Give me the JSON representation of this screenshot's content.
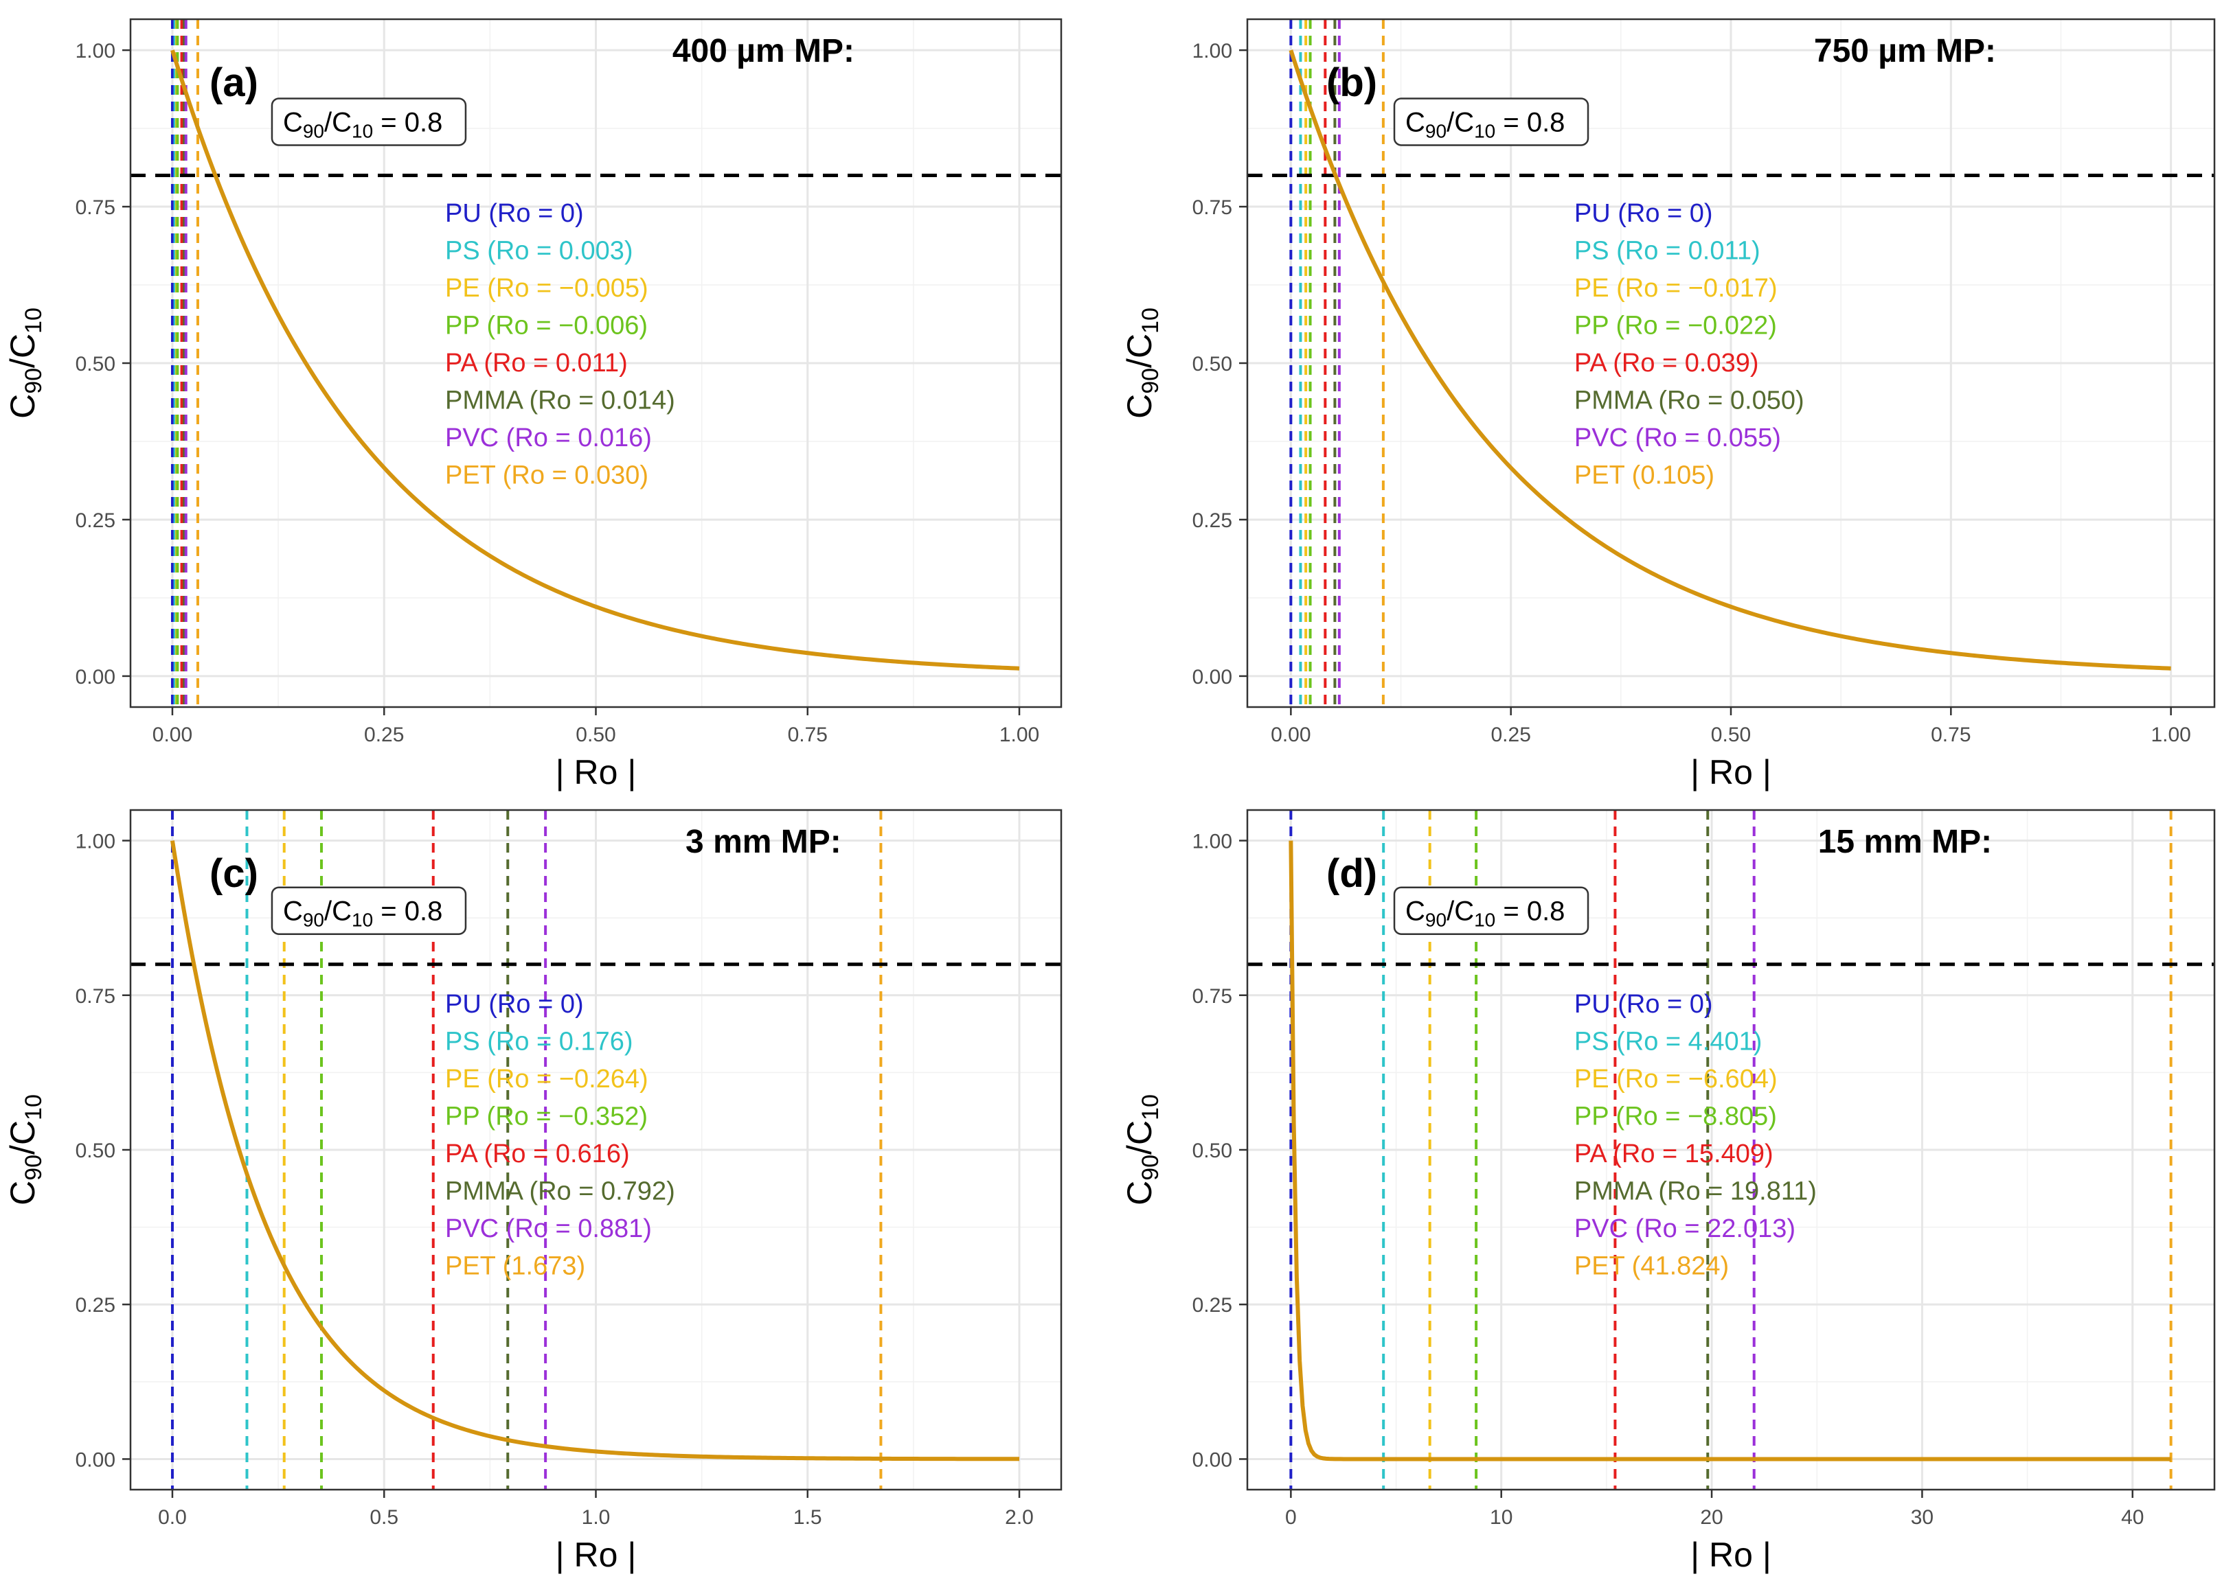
{
  "chart_data": [
    {
      "type": "line",
      "panel_label": "(a)",
      "title": "400 µm MP:",
      "xlabel": "| Ro |",
      "ylabel_main": "C",
      "ylabel_num_sub": "90",
      "ylabel_den_sub": "10",
      "xlim": [
        0,
        1
      ],
      "ylim": [
        0,
        1
      ],
      "xticks": [
        0,
        0.25,
        0.5,
        0.75,
        1
      ],
      "xtick_labels": [
        "0.00",
        "0.25",
        "0.50",
        "0.75",
        "1.00"
      ],
      "yticks": [
        0,
        0.25,
        0.5,
        0.75,
        1
      ],
      "ytick_labels": [
        "0.00",
        "0.25",
        "0.50",
        "0.75",
        "1.00"
      ],
      "grid": true,
      "decay_rate": 4.4,
      "curve_color": "#d4940f",
      "hline": {
        "y": 0.8,
        "label_main": "C",
        "label_num_sub": "90",
        "label_den_sub": "10",
        "label_value": " = 0.8"
      },
      "vlines": [
        {
          "name": "PU",
          "value": 0,
          "label": "PU (Ro = 0)",
          "color": "#1f1fc8"
        },
        {
          "name": "PS",
          "value": 0.003,
          "label": "PS (Ro = 0.003)",
          "color": "#2ec4c9"
        },
        {
          "name": "PE",
          "value": 0.005,
          "label": "PE (Ro = −0.005)",
          "color": "#f2c21b"
        },
        {
          "name": "PP",
          "value": 0.006,
          "label": "PP (Ro = −0.006)",
          "color": "#6cc41e"
        },
        {
          "name": "PA",
          "value": 0.011,
          "label": "PA (Ro = 0.011)",
          "color": "#e61e1e"
        },
        {
          "name": "PMMA",
          "value": 0.014,
          "label": "PMMA (Ro = 0.014)",
          "color": "#556b2f"
        },
        {
          "name": "PVC",
          "value": 0.016,
          "label": "PVC (Ro = 0.016)",
          "color": "#9b30d9"
        },
        {
          "name": "PET",
          "value": 0.03,
          "label": "PET (Ro = 0.030)",
          "color": "#f0a81e"
        }
      ]
    },
    {
      "type": "line",
      "panel_label": "(b)",
      "title": "750 µm MP:",
      "xlabel": "| Ro |",
      "ylabel_main": "C",
      "ylabel_num_sub": "90",
      "ylabel_den_sub": "10",
      "xlim": [
        0,
        1
      ],
      "ylim": [
        0,
        1
      ],
      "xticks": [
        0,
        0.25,
        0.5,
        0.75,
        1
      ],
      "xtick_labels": [
        "0.00",
        "0.25",
        "0.50",
        "0.75",
        "1.00"
      ],
      "yticks": [
        0,
        0.25,
        0.5,
        0.75,
        1
      ],
      "ytick_labels": [
        "0.00",
        "0.25",
        "0.50",
        "0.75",
        "1.00"
      ],
      "grid": true,
      "decay_rate": 4.4,
      "curve_color": "#d4940f",
      "hline": {
        "y": 0.8,
        "label_main": "C",
        "label_num_sub": "90",
        "label_den_sub": "10",
        "label_value": " = 0.8"
      },
      "vlines": [
        {
          "name": "PU",
          "value": 0,
          "label": "PU (Ro = 0)",
          "color": "#1f1fc8"
        },
        {
          "name": "PS",
          "value": 0.011,
          "label": "PS (Ro = 0.011)",
          "color": "#2ec4c9"
        },
        {
          "name": "PE",
          "value": 0.017,
          "label": "PE (Ro = −0.017)",
          "color": "#f2c21b"
        },
        {
          "name": "PP",
          "value": 0.022,
          "label": "PP (Ro = −0.022)",
          "color": "#6cc41e"
        },
        {
          "name": "PA",
          "value": 0.039,
          "label": "PA (Ro = 0.039)",
          "color": "#e61e1e"
        },
        {
          "name": "PMMA",
          "value": 0.05,
          "label": "PMMA (Ro = 0.050)",
          "color": "#556b2f"
        },
        {
          "name": "PVC",
          "value": 0.055,
          "label": "PVC (Ro = 0.055)",
          "color": "#9b30d9"
        },
        {
          "name": "PET",
          "value": 0.105,
          "label": "PET (0.105)",
          "color": "#f0a81e"
        }
      ]
    },
    {
      "type": "line",
      "panel_label": "(c)",
      "title": "3 mm MP:",
      "xlabel": "| Ro |",
      "ylabel_main": "C",
      "ylabel_num_sub": "90",
      "ylabel_den_sub": "10",
      "xlim": [
        0,
        2
      ],
      "ylim": [
        0,
        1
      ],
      "xticks": [
        0,
        0.5,
        1,
        1.5,
        2
      ],
      "xtick_labels": [
        "0.0",
        "0.5",
        "1.0",
        "1.5",
        "2.0"
      ],
      "yticks": [
        0,
        0.25,
        0.5,
        0.75,
        1
      ],
      "ytick_labels": [
        "0.00",
        "0.25",
        "0.50",
        "0.75",
        "1.00"
      ],
      "grid": true,
      "decay_rate": 4.4,
      "curve_color": "#d4940f",
      "hline": {
        "y": 0.8,
        "label_main": "C",
        "label_num_sub": "90",
        "label_den_sub": "10",
        "label_value": " = 0.8"
      },
      "vlines": [
        {
          "name": "PU",
          "value": 0,
          "label": "PU (Ro = 0)",
          "color": "#1f1fc8"
        },
        {
          "name": "PS",
          "value": 0.176,
          "label": "PS (Ro = 0.176)",
          "color": "#2ec4c9"
        },
        {
          "name": "PE",
          "value": 0.264,
          "label": "PE (Ro = −0.264)",
          "color": "#f2c21b"
        },
        {
          "name": "PP",
          "value": 0.352,
          "label": "PP (Ro = −0.352)",
          "color": "#6cc41e"
        },
        {
          "name": "PA",
          "value": 0.616,
          "label": "PA (Ro = 0.616)",
          "color": "#e61e1e"
        },
        {
          "name": "PMMA",
          "value": 0.792,
          "label": "PMMA (Ro = 0.792)",
          "color": "#556b2f"
        },
        {
          "name": "PVC",
          "value": 0.881,
          "label": "PVC (Ro = 0.881)",
          "color": "#9b30d9"
        },
        {
          "name": "PET",
          "value": 1.673,
          "label": "PET (1.673)",
          "color": "#f0a81e"
        }
      ]
    },
    {
      "type": "line",
      "panel_label": "(d)",
      "title": "15 mm MP:",
      "xlabel": "| Ro |",
      "ylabel_main": "C",
      "ylabel_num_sub": "90",
      "ylabel_den_sub": "10",
      "xlim": [
        0,
        41.824
      ],
      "ylim": [
        0,
        1
      ],
      "xticks": [
        0,
        10,
        20,
        30,
        40
      ],
      "xtick_labels": [
        "0",
        "10",
        "20",
        "30",
        "40"
      ],
      "yticks": [
        0,
        0.25,
        0.5,
        0.75,
        1
      ],
      "ytick_labels": [
        "0.00",
        "0.25",
        "0.50",
        "0.75",
        "1.00"
      ],
      "grid": true,
      "decay_rate": 4.4,
      "curve_color": "#d4940f",
      "hline": {
        "y": 0.8,
        "label_main": "C",
        "label_num_sub": "90",
        "label_den_sub": "10",
        "label_value": " = 0.8"
      },
      "vlines": [
        {
          "name": "PU",
          "value": 0,
          "label": "PU (Ro = 0)",
          "color": "#1f1fc8"
        },
        {
          "name": "PS",
          "value": 4.401,
          "label": "PS (Ro = 4.401)",
          "color": "#2ec4c9"
        },
        {
          "name": "PE",
          "value": 6.604,
          "label": "PE (Ro = −6.604)",
          "color": "#f2c21b"
        },
        {
          "name": "PP",
          "value": 8.805,
          "label": "PP (Ro = −8.805)",
          "color": "#6cc41e"
        },
        {
          "name": "PA",
          "value": 15.409,
          "label": "PA (Ro = 15.409)",
          "color": "#e61e1e"
        },
        {
          "name": "PMMA",
          "value": 19.811,
          "label": "PMMA (Ro = 19.811)",
          "color": "#556b2f"
        },
        {
          "name": "PVC",
          "value": 22.013,
          "label": "PVC (Ro = 22.013)",
          "color": "#9b30d9"
        },
        {
          "name": "PET",
          "value": 41.824,
          "label": "PET (41.824)",
          "color": "#f0a81e"
        }
      ]
    }
  ]
}
